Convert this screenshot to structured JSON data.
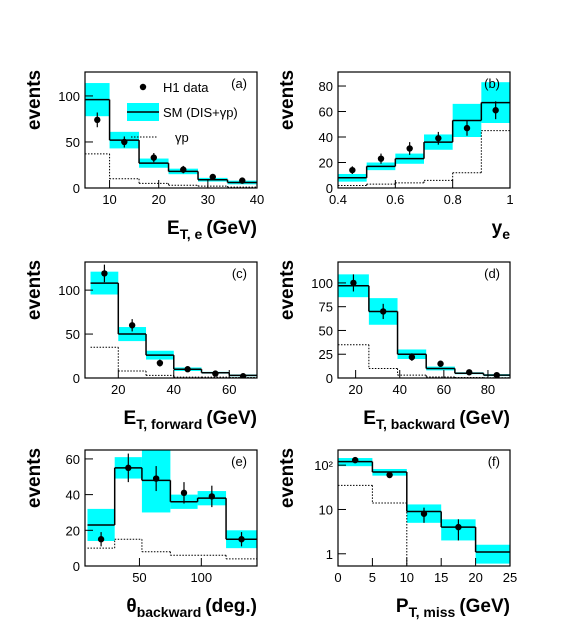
{
  "chart_data": [
    {
      "type": "histogram",
      "label": "(a)",
      "ylabel": "events",
      "xlabel": {
        "main": "E",
        "sub": "T, e",
        "unit": "(GeV)"
      },
      "legend": [
        "H1 data",
        "SM (DIS+γp)",
        "γp"
      ],
      "band_color": "#00ffff",
      "xlim": [
        5,
        40
      ],
      "ylim": [
        0,
        126
      ],
      "xticks": [
        10,
        20,
        30,
        40
      ],
      "yticks": [
        0,
        50,
        100
      ],
      "edges": [
        5,
        10,
        16,
        22,
        28,
        34,
        40
      ],
      "sm": [
        96,
        52,
        27,
        18,
        9,
        6
      ],
      "sm_err": [
        18,
        9,
        5,
        3,
        2,
        2
      ],
      "gamma_p": [
        37,
        10,
        5,
        3,
        2,
        1
      ],
      "data_x": [
        7.5,
        13,
        19,
        25,
        31,
        37
      ],
      "data": [
        74,
        50,
        33,
        20,
        12,
        8
      ],
      "data_err": [
        8,
        6,
        5,
        4,
        3,
        3
      ]
    },
    {
      "type": "histogram",
      "label": "(b)",
      "ylabel": "events",
      "xlabel": {
        "main": "y",
        "sub": "e"
      },
      "band_color": "#00ffff",
      "xlim": [
        0.4,
        1
      ],
      "ylim": [
        0,
        91
      ],
      "xticks": [
        0.4,
        0.6,
        0.8,
        1
      ],
      "yticks": [
        0,
        20,
        40,
        60,
        80
      ],
      "edges": [
        0.4,
        0.5,
        0.6,
        0.7,
        0.8,
        0.9,
        1
      ],
      "sm": [
        8,
        17,
        23,
        36,
        53,
        67
      ],
      "sm_err": [
        3,
        3,
        4,
        6,
        13,
        16
      ],
      "gamma_p": [
        2,
        3,
        4,
        6,
        12,
        45
      ],
      "data_x": [
        0.45,
        0.55,
        0.65,
        0.75,
        0.85,
        0.95
      ],
      "data": [
        14,
        23,
        31,
        39,
        47,
        61
      ],
      "data_err": [
        3,
        4,
        5,
        5,
        6,
        7
      ]
    },
    {
      "type": "histogram",
      "label": "(c)",
      "ylabel": "events",
      "xlabel": {
        "main": "E",
        "sub": "T, forward",
        "unit": "(GeV)"
      },
      "band_color": "#00ffff",
      "xlim": [
        8,
        70
      ],
      "ylim": [
        0,
        132
      ],
      "xticks": [
        20,
        40,
        60
      ],
      "yticks": [
        0,
        50,
        100
      ],
      "edges": [
        10,
        20,
        30,
        40,
        50,
        60,
        70
      ],
      "sm": [
        108,
        50,
        26,
        10,
        6,
        3
      ],
      "sm_err": [
        13,
        8,
        5,
        2,
        1,
        1
      ],
      "gamma_p": [
        35,
        8,
        3,
        1,
        1,
        0.5
      ],
      "data_x": [
        15,
        25,
        35,
        45,
        55,
        65
      ],
      "data": [
        119,
        60,
        17,
        10,
        5,
        2
      ],
      "data_err": [
        10,
        7,
        4,
        3,
        2,
        1
      ]
    },
    {
      "type": "histogram",
      "label": "(d)",
      "ylabel": "events",
      "xlabel": {
        "main": "E",
        "sub": "T, backward",
        "unit": "(GeV)"
      },
      "band_color": "#00ffff",
      "xlim": [
        12,
        90
      ],
      "ylim": [
        0,
        122
      ],
      "xticks": [
        20,
        40,
        60,
        80
      ],
      "yticks": [
        0,
        25,
        50,
        75,
        100
      ],
      "edges": [
        12,
        26,
        39,
        52,
        65,
        78,
        90
      ],
      "sm": [
        97,
        70,
        25,
        10,
        5,
        3
      ],
      "sm_err": [
        12,
        14,
        5,
        2,
        1,
        1
      ],
      "gamma_p": [
        35,
        10,
        3,
        1,
        0.5,
        0.3
      ],
      "data_x": [
        19,
        32.5,
        45.5,
        58.5,
        71.5,
        84
      ],
      "data": [
        100,
        70,
        22,
        15,
        6,
        3
      ],
      "data_err": [
        9,
        8,
        4,
        3,
        2,
        1
      ]
    },
    {
      "type": "histogram",
      "label": "(e)",
      "ylabel": "events",
      "xlabel": {
        "main": "θ",
        "sub": "backward",
        "unit": "(deg.)"
      },
      "band_color": "#00ffff",
      "xlim": [
        6,
        145
      ],
      "ylim": [
        0,
        65
      ],
      "xticks": [
        50,
        100
      ],
      "yticks": [
        0,
        20,
        40,
        60
      ],
      "edges": [
        8,
        30,
        52,
        75,
        97,
        120,
        145
      ],
      "sm": [
        23,
        55,
        48,
        36,
        38,
        15
      ],
      "sm_err": [
        9,
        6,
        18,
        4,
        4,
        5
      ],
      "gamma_p": [
        10,
        15,
        8,
        6,
        6,
        4
      ],
      "data_x": [
        19,
        41,
        63.5,
        86,
        108.5,
        132.5
      ],
      "data": [
        15,
        55,
        49,
        41,
        39,
        15
      ],
      "data_err": [
        4,
        8,
        7,
        6,
        6,
        4
      ]
    },
    {
      "type": "histogram",
      "label": "(f)",
      "ylabel": "events",
      "xlabel": {
        "main": "P",
        "sub": "T, miss",
        "unit": "(GeV)"
      },
      "band_color": "#00ffff",
      "log_y": true,
      "xlim": [
        0,
        25
      ],
      "ylim": [
        0.53,
        220
      ],
      "xticks": [
        0,
        5,
        10,
        15,
        20,
        25
      ],
      "yticks": [
        1,
        10,
        {
          "value": 100,
          "label": "10²"
        }
      ],
      "edges": [
        0,
        5,
        10,
        15,
        20,
        25
      ],
      "sm": [
        120,
        70,
        9,
        4,
        1.1
      ],
      "sm_err": [
        25,
        12,
        4,
        2,
        0.5
      ],
      "gamma_p": [
        35,
        14,
        null,
        null,
        null
      ],
      "data_x": [
        2.5,
        7.5,
        12.5,
        17.5
      ],
      "data": [
        130,
        60,
        8,
        4
      ],
      "data_err": [
        10,
        7,
        3,
        2
      ]
    }
  ]
}
